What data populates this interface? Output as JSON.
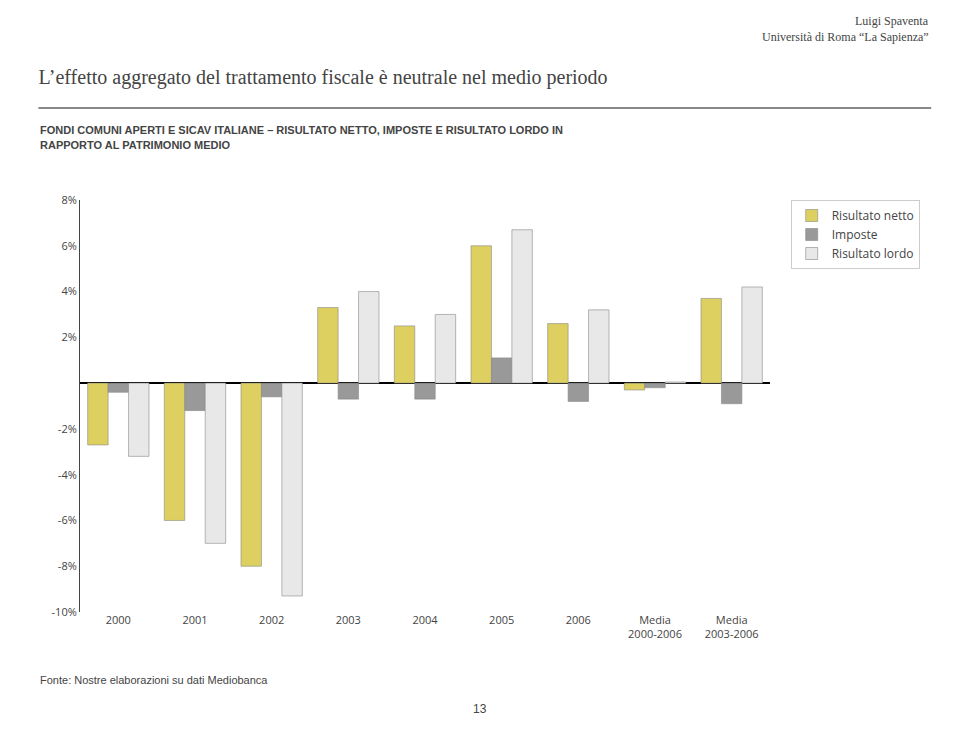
{
  "chart_data": {
    "type": "bar",
    "title": "L’effetto aggregato del trattamento fiscale è neutrale nel medio periodo",
    "subtitle": [
      "FONDI COMUNI APERTI E SICAV ITALIANE – RISULTATO NETTO, IMPOSTE E RISULTATO LORDO IN",
      "RAPPORTO AL PATRIMONIO MEDIO"
    ],
    "annotations": [
      "Luigi Spaventa",
      "Università di Roma “La Sapienza”",
      "Fonte: Nostre elaborazioni su dati Mediobanca",
      "13"
    ],
    "categories": [
      "2000",
      "2001",
      "2002",
      "2003",
      "2004",
      "2005",
      "2006",
      "Media\n2000-2006",
      "Media\n2003-2006"
    ],
    "series": [
      {
        "name": "Risultato netto",
        "color": "#ddd060",
        "values": [
          -2.7,
          -6.0,
          -8.0,
          3.3,
          2.5,
          6.0,
          2.6,
          -0.3,
          3.7
        ]
      },
      {
        "name": "Imposte",
        "color": "#999999",
        "values": [
          -0.4,
          -1.2,
          -0.6,
          -0.7,
          -0.7,
          1.1,
          -0.8,
          -0.2,
          -0.9
        ]
      },
      {
        "name": "Risultato lordo",
        "color": "#e8e8e8",
        "values": [
          -3.2,
          -7.0,
          -9.3,
          4.0,
          3.0,
          6.7,
          3.2,
          0.05,
          4.2
        ]
      }
    ],
    "ylim": [
      -10,
      8
    ],
    "yticks": [
      {
        "value": -10,
        "label": "-10%"
      },
      {
        "value": -8,
        "label": "-8%"
      },
      {
        "value": -6,
        "label": "-6%"
      },
      {
        "value": -4,
        "label": "-4%"
      },
      {
        "value": -2,
        "label": "-2%"
      },
      {
        "value": 0,
        "label": null
      },
      {
        "value": 2,
        "label": "2%"
      },
      {
        "value": 4,
        "label": "4%"
      },
      {
        "value": 6,
        "label": "6%"
      },
      {
        "value": 8,
        "label": "8%"
      }
    ],
    "grid": false,
    "legend": "right"
  }
}
